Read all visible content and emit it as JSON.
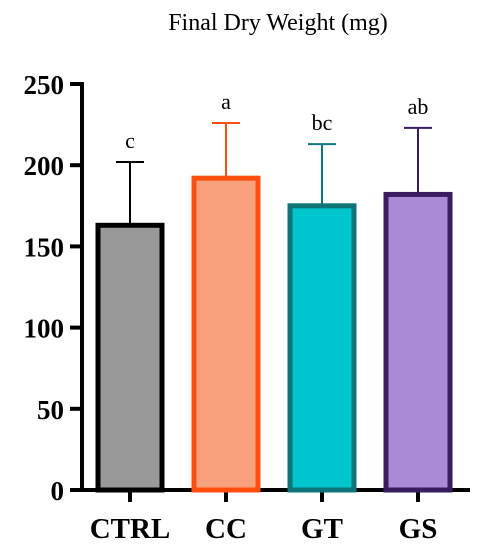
{
  "chart_data": {
    "type": "bar",
    "title": "Final Dry Weight (mg)",
    "xlabel": "",
    "ylabel": "",
    "ylim": [
      0,
      250
    ],
    "yticks": [
      0,
      50,
      100,
      150,
      200,
      250
    ],
    "categories": [
      "CTRL",
      "CC",
      "GT",
      "GS"
    ],
    "values": [
      163,
      192,
      175,
      182
    ],
    "error_upper": [
      202,
      226,
      213,
      223
    ],
    "significance": [
      "c",
      "a",
      "bc",
      "ab"
    ],
    "colors": {
      "fill": [
        "#999999",
        "#F9A07D",
        "#00C5CD",
        "#A98AD6"
      ],
      "stroke": [
        "#000000",
        "#FF4F10",
        "#0E7478",
        "#3A1C60"
      ]
    },
    "grid": false,
    "legend": "none"
  }
}
